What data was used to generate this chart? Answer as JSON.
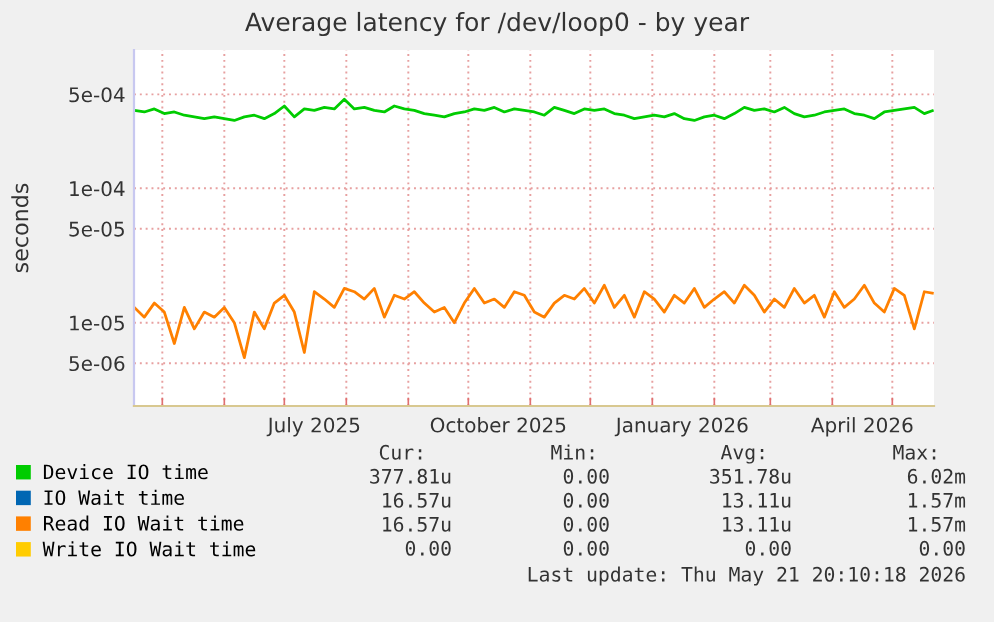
{
  "chart_data": {
    "type": "line",
    "title": "Average latency for /dev/loop0 - by year",
    "ylabel": "seconds",
    "x": [
      "2025-04-17",
      "2025-04-22",
      "2025-04-27",
      "2025-05-02",
      "2025-05-07",
      "2025-05-12",
      "2025-05-17",
      "2025-05-22",
      "2025-05-27",
      "2025-06-01",
      "2025-06-06",
      "2025-06-11",
      "2025-06-16",
      "2025-06-21",
      "2025-06-26",
      "2025-07-01",
      "2025-07-06",
      "2025-07-11",
      "2025-07-16",
      "2025-07-21",
      "2025-07-26",
      "2025-07-31",
      "2025-08-05",
      "2025-08-10",
      "2025-08-15",
      "2025-08-20",
      "2025-08-25",
      "2025-08-30",
      "2025-09-04",
      "2025-09-09",
      "2025-09-14",
      "2025-09-19",
      "2025-09-24",
      "2025-09-29",
      "2025-10-04",
      "2025-10-09",
      "2025-10-14",
      "2025-10-19",
      "2025-10-24",
      "2025-10-29",
      "2025-11-03",
      "2025-11-08",
      "2025-11-13",
      "2025-11-18",
      "2025-11-23",
      "2025-11-28",
      "2025-12-03",
      "2025-12-08",
      "2025-12-13",
      "2025-12-18",
      "2025-12-23",
      "2025-12-28",
      "2026-01-02",
      "2026-01-07",
      "2026-01-12",
      "2026-01-17",
      "2026-01-22",
      "2026-01-27",
      "2026-02-01",
      "2026-02-06",
      "2026-02-11",
      "2026-02-16",
      "2026-02-21",
      "2026-02-26",
      "2026-03-03",
      "2026-03-08",
      "2026-03-13",
      "2026-03-18",
      "2026-03-23",
      "2026-03-28",
      "2026-04-02",
      "2026-04-07",
      "2026-04-12",
      "2026-04-17",
      "2026-04-22",
      "2026-04-27",
      "2026-05-02",
      "2026-05-07",
      "2026-05-12",
      "2026-05-17",
      "2026-05-21"
    ],
    "series": [
      {
        "name": "Device IO time",
        "color": "#00cc00",
        "values": [
          0.00038,
          0.00037,
          0.00039,
          0.00036,
          0.00037,
          0.00035,
          0.00034,
          0.00033,
          0.00034,
          0.00033,
          0.00032,
          0.00034,
          0.00035,
          0.00033,
          0.00036,
          0.00041,
          0.00034,
          0.00039,
          0.00038,
          0.0004,
          0.00039,
          0.00046,
          0.00039,
          0.0004,
          0.00038,
          0.00037,
          0.00041,
          0.00039,
          0.00038,
          0.00036,
          0.00035,
          0.00034,
          0.00036,
          0.00037,
          0.00039,
          0.00038,
          0.0004,
          0.00037,
          0.00039,
          0.00038,
          0.00037,
          0.00035,
          0.0004,
          0.00038,
          0.00036,
          0.00039,
          0.00038,
          0.00039,
          0.00036,
          0.00035,
          0.00033,
          0.00034,
          0.00035,
          0.00034,
          0.00036,
          0.00033,
          0.00032,
          0.00034,
          0.00035,
          0.00033,
          0.00036,
          0.0004,
          0.00038,
          0.00039,
          0.00037,
          0.0004,
          0.00036,
          0.00034,
          0.00035,
          0.00037,
          0.00038,
          0.00039,
          0.00036,
          0.00035,
          0.00033,
          0.00037,
          0.00038,
          0.00039,
          0.0004,
          0.00036,
          0.000378
        ]
      },
      {
        "name": "IO Wait time",
        "color": "#0066b3",
        "values": [
          null,
          null,
          null,
          null,
          null,
          null,
          null,
          null,
          null,
          null,
          null,
          null,
          null,
          null,
          null,
          null,
          null,
          null,
          null,
          null,
          null,
          null,
          null,
          null,
          null,
          null,
          null,
          null,
          null,
          null,
          null,
          null,
          null,
          null,
          null,
          null,
          null,
          null,
          null,
          null,
          null,
          null,
          null,
          null,
          null,
          null,
          null,
          null,
          null,
          null,
          null,
          null,
          null,
          null,
          null,
          null,
          null,
          null,
          null,
          null,
          null,
          null,
          null,
          null,
          null,
          null,
          null,
          null,
          null,
          null,
          null,
          null,
          null,
          null,
          null,
          null,
          null,
          null,
          null,
          null,
          null
        ]
      },
      {
        "name": "Read IO Wait time",
        "color": "#ff8000",
        "values": [
          1.3e-05,
          1.1e-05,
          1.4e-05,
          1.2e-05,
          7e-06,
          1.3e-05,
          9e-06,
          1.2e-05,
          1.1e-05,
          1.3e-05,
          1e-05,
          5.5e-06,
          1.2e-05,
          9e-06,
          1.4e-05,
          1.6e-05,
          1.2e-05,
          6e-06,
          1.7e-05,
          1.5e-05,
          1.3e-05,
          1.8e-05,
          1.7e-05,
          1.5e-05,
          1.8e-05,
          1.1e-05,
          1.6e-05,
          1.5e-05,
          1.7e-05,
          1.4e-05,
          1.2e-05,
          1.3e-05,
          1e-05,
          1.4e-05,
          1.8e-05,
          1.4e-05,
          1.5e-05,
          1.3e-05,
          1.7e-05,
          1.6e-05,
          1.2e-05,
          1.1e-05,
          1.4e-05,
          1.6e-05,
          1.5e-05,
          1.8e-05,
          1.4e-05,
          1.9e-05,
          1.3e-05,
          1.6e-05,
          1.1e-05,
          1.7e-05,
          1.5e-05,
          1.2e-05,
          1.6e-05,
          1.4e-05,
          1.8e-05,
          1.3e-05,
          1.5e-05,
          1.7e-05,
          1.4e-05,
          1.9e-05,
          1.6e-05,
          1.2e-05,
          1.5e-05,
          1.3e-05,
          1.8e-05,
          1.4e-05,
          1.6e-05,
          1.1e-05,
          1.7e-05,
          1.3e-05,
          1.5e-05,
          1.9e-05,
          1.4e-05,
          1.2e-05,
          1.8e-05,
          1.6e-05,
          9e-06,
          1.7e-05,
          1.66e-05
        ]
      },
      {
        "name": "Write IO Wait time",
        "color": "#ffcc00",
        "values": [
          null,
          null,
          null,
          null,
          null,
          null,
          null,
          null,
          null,
          null,
          null,
          null,
          null,
          null,
          null,
          null,
          null,
          null,
          null,
          null,
          null,
          null,
          null,
          null,
          null,
          null,
          null,
          null,
          null,
          null,
          null,
          null,
          null,
          null,
          null,
          null,
          null,
          null,
          null,
          null,
          null,
          null,
          null,
          null,
          null,
          null,
          null,
          null,
          null,
          null,
          null,
          null,
          null,
          null,
          null,
          null,
          null,
          null,
          null,
          null,
          null,
          null,
          null,
          null,
          null,
          null,
          null,
          null,
          null,
          null,
          null,
          null,
          null,
          null,
          null,
          null,
          null,
          null,
          null,
          null,
          null
        ]
      }
    ],
    "log": "y",
    "xlim": [
      "2025-04-16T20:10",
      "2026-05-21T20:10"
    ],
    "xticks": [
      {
        "value": "2025-05-01",
        "label": null
      },
      {
        "value": "2025-06-01",
        "label": null
      },
      {
        "value": "2025-07-01",
        "label": null
      },
      {
        "value": "2025-07-16",
        "label": "July 2025"
      },
      {
        "value": "2025-08-01",
        "label": null
      },
      {
        "value": "2025-09-01",
        "label": null
      },
      {
        "value": "2025-10-01",
        "label": null
      },
      {
        "value": "2025-10-16",
        "label": "October 2025"
      },
      {
        "value": "2025-11-01",
        "label": null
      },
      {
        "value": "2025-12-01",
        "label": null
      },
      {
        "value": "2026-01-01",
        "label": null
      },
      {
        "value": "2026-01-16",
        "label": "January 2026"
      },
      {
        "value": "2026-02-01",
        "label": null
      },
      {
        "value": "2026-03-01",
        "label": null
      },
      {
        "value": "2026-04-01",
        "label": null
      },
      {
        "value": "2026-04-16",
        "label": "April 2026"
      },
      {
        "value": "2026-05-01",
        "label": null
      }
    ],
    "ylim": [
      2.4e-06,
      0.00107
    ],
    "yticks": [
      {
        "value": 5e-06,
        "label": "5e-06"
      },
      {
        "value": 1e-05,
        "label": "1e-05"
      },
      {
        "value": 5e-05,
        "label": "5e-05"
      },
      {
        "value": 0.0001,
        "label": "1e-04"
      },
      {
        "value": 0.0005,
        "label": "5e-04"
      }
    ],
    "grid": true,
    "legend": "bottom",
    "marker": "none",
    "line_style": "solid",
    "annotations": [
      "Cur:",
      "Min:",
      "Avg:",
      "Max:",
      "377.81u",
      "0.00",
      "351.78u",
      "6.02m",
      "16.57u",
      "0.00",
      "13.11u",
      "1.57m",
      "16.57u",
      "0.00",
      "13.11u",
      "1.57m",
      "0.00",
      "0.00",
      "0.00",
      "0.00",
      "Last update: Thu May 21 20:10:18 2026"
    ]
  }
}
